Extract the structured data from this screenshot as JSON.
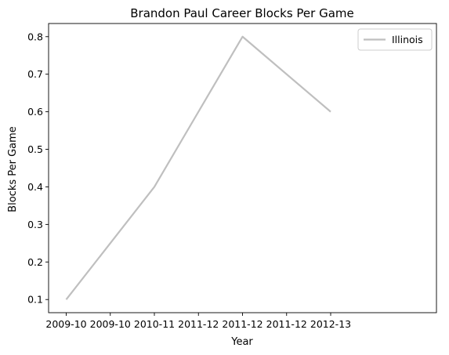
{
  "chart_data": {
    "type": "line",
    "title": "Brandon Paul Career Blocks Per Game",
    "xlabel": "Year",
    "ylabel": "Blocks Per Game",
    "x_ticks": [
      "2009-10",
      "2009-10",
      "2010-11",
      "2011-12",
      "2011-12",
      "2011-12",
      "2012-13"
    ],
    "y_ticks": [
      "0.1",
      "0.2",
      "0.3",
      "0.4",
      "0.5",
      "0.6",
      "0.7",
      "0.8"
    ],
    "xlim": [
      -0.2,
      4.2
    ],
    "ylim": [
      0.065,
      0.835
    ],
    "categories": [
      "2009-10",
      "2010-11",
      "2011-12",
      "2012-13"
    ],
    "series": [
      {
        "name": "Illinois",
        "color": "#bfbfbf",
        "values": [
          0.1,
          0.4,
          0.8,
          0.6
        ]
      }
    ],
    "legend_position": "top-right",
    "grid": false
  }
}
